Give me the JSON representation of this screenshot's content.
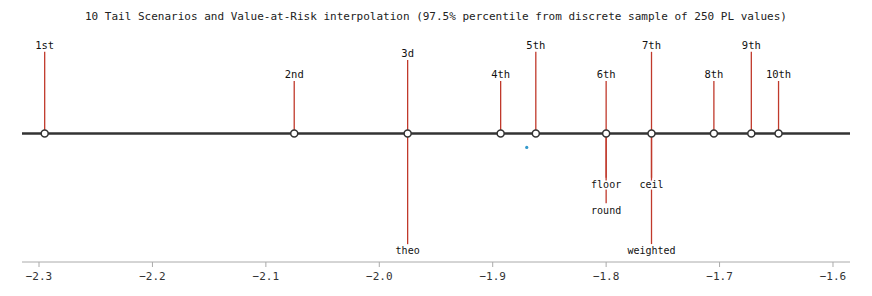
{
  "chart_data": {
    "type": "number_line",
    "title": "10 Tail Scenarios and Value-at-Risk interpolation (97.5% percentile from discrete sample of 250 PL values)",
    "categories": [
      "1st",
      "2nd",
      "3d",
      "4th",
      "5th",
      "6th",
      "7th",
      "8th",
      "9th",
      "10th"
    ],
    "x": [
      -2.295,
      -2.075,
      -1.975,
      -1.893,
      -1.862,
      -1.8,
      -1.76,
      -1.705,
      -1.672,
      -1.648
    ],
    "values": [
      7.0,
      4.5,
      6.3,
      4.5,
      7.0,
      4.5,
      7.0,
      4.5,
      7.0,
      4.5
    ],
    "baseline": 0.0,
    "annotations": [
      {
        "text": "theo",
        "x": -1.975,
        "y": -9.5
      },
      {
        "text": "floor",
        "x": -1.8,
        "y": -3.8
      },
      {
        "text": "ceil",
        "x": -1.76,
        "y": -3.8
      },
      {
        "text": "round",
        "x": -1.8,
        "y": -6.0
      },
      {
        "text": "weighted",
        "x": -1.76,
        "y": -9.5
      }
    ],
    "points": [
      {
        "x": -1.87,
        "y": -1.2,
        "color": "#3399cc"
      }
    ],
    "color": "#c0392b",
    "xlim": [
      -2.315,
      -1.585
    ],
    "ylim": [
      -10.0,
      7.5
    ],
    "xticks": [
      {
        "value": -2.3,
        "label": "−2.3"
      },
      {
        "value": -2.2,
        "label": "−2.2"
      },
      {
        "value": -2.1,
        "label": "−2.1"
      },
      {
        "value": -2.0,
        "label": "−2.0"
      },
      {
        "value": -1.9,
        "label": "−1.9"
      },
      {
        "value": -1.8,
        "label": "−1.8"
      },
      {
        "value": -1.7,
        "label": "−1.7"
      },
      {
        "value": -1.6,
        "label": "−1.6"
      }
    ],
    "tick_labels": "x",
    "grid": false
  }
}
